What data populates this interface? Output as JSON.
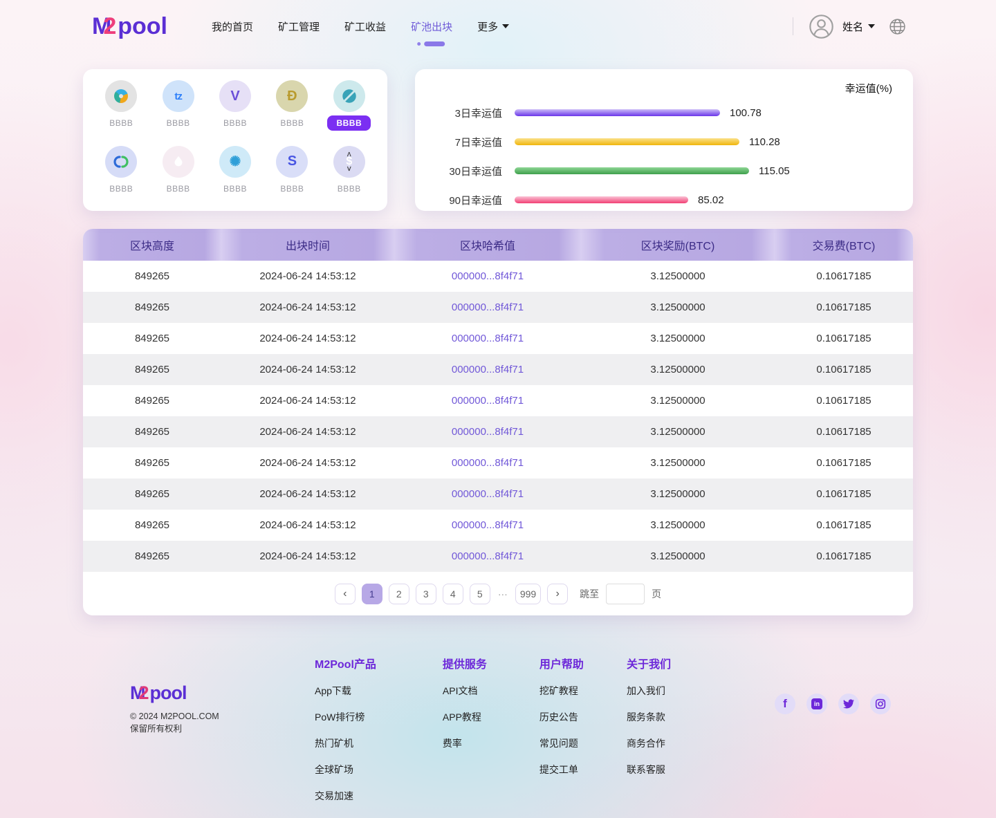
{
  "header": {
    "logo": {
      "part1": "M",
      "part2": "2",
      "part3": "pool"
    },
    "nav": [
      {
        "label": "我的首页",
        "active": false,
        "dropdown": false
      },
      {
        "label": "矿工管理",
        "active": false,
        "dropdown": false
      },
      {
        "label": "矿工收益",
        "active": false,
        "dropdown": false
      },
      {
        "label": "矿池出块",
        "active": true,
        "dropdown": false
      },
      {
        "label": "更多",
        "active": false,
        "dropdown": true
      }
    ],
    "user": {
      "name": "姓名"
    }
  },
  "coins": [
    {
      "id": "nem",
      "label": "BBBB",
      "selected": false
    },
    {
      "id": "tezos",
      "label": "BBBB",
      "selected": false
    },
    {
      "id": "vechain",
      "label": "BBBB",
      "selected": false
    },
    {
      "id": "dogecoin",
      "label": "BBBB",
      "selected": false
    },
    {
      "id": "ontology",
      "label": "BBBB",
      "selected": true
    },
    {
      "id": "decred",
      "label": "BBBB",
      "selected": false
    },
    {
      "id": "droplet",
      "label": "BBBB",
      "selected": false
    },
    {
      "id": "bitshares",
      "label": "BBBB",
      "selected": false
    },
    {
      "id": "scoin",
      "label": "BBBB",
      "selected": false
    },
    {
      "id": "dollar",
      "label": "BBBB",
      "selected": false
    }
  ],
  "chart_data": {
    "type": "bar",
    "orientation": "horizontal",
    "title": "幸运值(%)",
    "categories": [
      "3日幸运值",
      "7日幸运值",
      "30日幸运值",
      "90日幸运值"
    ],
    "values": [
      100.78,
      110.28,
      115.05,
      85.02
    ],
    "value_labels": [
      "100.78",
      "110.28",
      "115.05",
      "85.02"
    ],
    "bar_colors": [
      {
        "top": "#cdbdf8",
        "bottom": "#6a36e9"
      },
      {
        "top": "#fbe089",
        "bottom": "#f0b60c"
      },
      {
        "top": "#8ed695",
        "bottom": "#3ea04b"
      },
      {
        "top": "#fac3d6",
        "bottom": "#f23f74"
      }
    ],
    "xlim": [
      0,
      120
    ],
    "grid": false,
    "legend": false
  },
  "table": {
    "headers": [
      "区块高度",
      "出块时间",
      "区块哈希值",
      "区块奖励(BTC)",
      "交易费(BTC)"
    ],
    "rows": [
      [
        "849265",
        "2024-06-24 14:53:12",
        "000000...8f4f71",
        "3.12500000",
        "0.10617185"
      ],
      [
        "849265",
        "2024-06-24 14:53:12",
        "000000...8f4f71",
        "3.12500000",
        "0.10617185"
      ],
      [
        "849265",
        "2024-06-24 14:53:12",
        "000000...8f4f71",
        "3.12500000",
        "0.10617185"
      ],
      [
        "849265",
        "2024-06-24 14:53:12",
        "000000...8f4f71",
        "3.12500000",
        "0.10617185"
      ],
      [
        "849265",
        "2024-06-24 14:53:12",
        "000000...8f4f71",
        "3.12500000",
        "0.10617185"
      ],
      [
        "849265",
        "2024-06-24 14:53:12",
        "000000...8f4f71",
        "3.12500000",
        "0.10617185"
      ],
      [
        "849265",
        "2024-06-24 14:53:12",
        "000000...8f4f71",
        "3.12500000",
        "0.10617185"
      ],
      [
        "849265",
        "2024-06-24 14:53:12",
        "000000...8f4f71",
        "3.12500000",
        "0.10617185"
      ],
      [
        "849265",
        "2024-06-24 14:53:12",
        "000000...8f4f71",
        "3.12500000",
        "0.10617185"
      ],
      [
        "849265",
        "2024-06-24 14:53:12",
        "000000...8f4f71",
        "3.12500000",
        "0.10617185"
      ]
    ]
  },
  "pagination": {
    "pages": [
      "1",
      "2",
      "3",
      "4",
      "5"
    ],
    "active_page": "1",
    "ellipsis": "···",
    "last_page": "999",
    "jump_label": "跳至",
    "jump_value": "",
    "page_suffix": "页"
  },
  "footer": {
    "logo": {
      "part1": "M",
      "part2": "2",
      "part3": "pool"
    },
    "copyright_line1": "© 2024 M2POOL.COM",
    "copyright_line2": "保留所有权利",
    "columns": [
      {
        "title": "M2Pool产品",
        "links": [
          "App下载",
          "PoW排行榜",
          "热门矿机",
          "全球矿场",
          "交易加速"
        ]
      },
      {
        "title": "提供服务",
        "links": [
          "API文档",
          "APP教程",
          "费率"
        ]
      },
      {
        "title": "用户帮助",
        "links": [
          "挖矿教程",
          "历史公告",
          "常见问题",
          "提交工单"
        ]
      },
      {
        "title": "关于我们",
        "links": [
          "加入我们",
          "服务条款",
          "商务合作",
          "联系客服"
        ]
      }
    ],
    "social": [
      "facebook",
      "linkedin",
      "twitter",
      "instagram"
    ]
  },
  "colors": {
    "accent_purple": "#6d28d9",
    "nav_active": "#6f5bd8",
    "table_header_bg": "#b7a8e2",
    "table_header_text": "#3b2b86",
    "row_alt": "#efeff1",
    "hash_link": "#7158d8",
    "selected_coin_pill": "#7b2ff2",
    "pagination_active": "#b7a8e6"
  }
}
